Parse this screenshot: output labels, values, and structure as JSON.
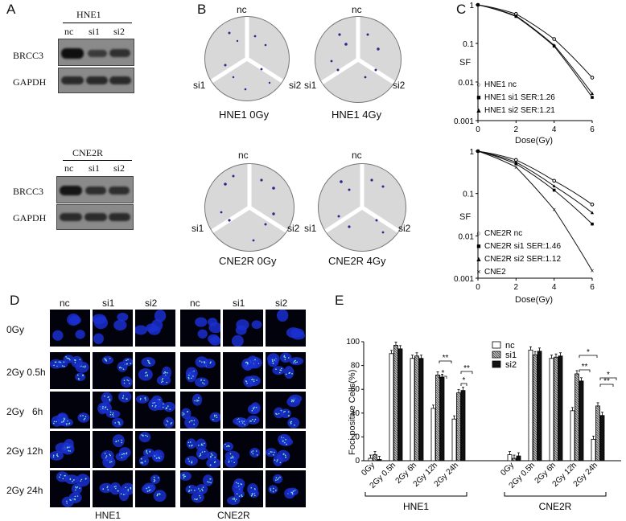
{
  "panelA": {
    "letter": "A",
    "blots": [
      {
        "cell_line": "HNE1",
        "lanes": [
          "nc",
          "si1",
          "si2"
        ],
        "rows": [
          "BRCC3",
          "GAPDH"
        ]
      },
      {
        "cell_line": "CNE2R",
        "lanes": [
          "nc",
          "si1",
          "si2"
        ],
        "rows": [
          "BRCC3",
          "GAPDH"
        ]
      }
    ]
  },
  "panelB": {
    "letter": "B",
    "plates": [
      {
        "caption": "HNE1 0Gy",
        "top": "nc",
        "left": "si1",
        "right": "si2"
      },
      {
        "caption": "HNE1 4Gy",
        "top": "nc",
        "left": "si1",
        "right": "si2"
      },
      {
        "caption": "CNE2R 0Gy",
        "top": "nc",
        "left": "si1",
        "right": "si2"
      },
      {
        "caption": "CNE2R 4Gy",
        "top": "nc",
        "left": "si1",
        "right": "si2"
      }
    ]
  },
  "panelC": {
    "letter": "C",
    "ylabel": "SF",
    "xlabel": "Dose(Gy)",
    "x_ticks": [
      "0",
      "2",
      "4",
      "6"
    ],
    "y_ticks": [
      "1",
      "0.1",
      "0.01",
      "0.001"
    ]
  },
  "panelD": {
    "letter": "D",
    "columns": [
      "nc",
      "si1",
      "si2",
      "nc",
      "si1",
      "si2"
    ],
    "rows": [
      "0Gy",
      "2Gy 0.5h",
      "2Gy   6h",
      "2Gy 12h",
      "2Gy 24h"
    ],
    "groups": [
      "HNE1",
      "CNE2R"
    ]
  },
  "panelE": {
    "letter": "E",
    "ylabel": "Foci-positive Cells(%)",
    "y_ticks": [
      "0",
      "20",
      "40",
      "60",
      "80",
      "100"
    ],
    "significance": [
      "**",
      "*",
      "**",
      "*",
      "*",
      "**",
      "**",
      "*"
    ]
  },
  "chart_data": [
    {
      "type": "line",
      "panel": "C-top",
      "xlabel": "Dose(Gy)",
      "ylabel": "SF",
      "yscale": "log",
      "xlim": [
        0,
        6
      ],
      "ylim": [
        0.001,
        1
      ],
      "x": [
        0,
        2,
        4,
        6
      ],
      "series": [
        {
          "name": "HNE1 nc",
          "marker": "circle",
          "values": [
            1,
            0.58,
            0.13,
            0.013
          ]
        },
        {
          "name": "HNE1 si1  SER:1.26",
          "marker": "square",
          "values": [
            1,
            0.5,
            0.085,
            0.004
          ]
        },
        {
          "name": "HNE1 si2  SER:1.21",
          "marker": "triangle",
          "values": [
            1,
            0.52,
            0.09,
            0.005
          ]
        }
      ]
    },
    {
      "type": "line",
      "panel": "C-bottom",
      "xlabel": "Dose(Gy)",
      "ylabel": "SF",
      "yscale": "log",
      "xlim": [
        0,
        6
      ],
      "ylim": [
        0.001,
        1
      ],
      "x": [
        0,
        2,
        4,
        6
      ],
      "series": [
        {
          "name": "CNE2R nc",
          "marker": "circle",
          "values": [
            1,
            0.62,
            0.2,
            0.055
          ]
        },
        {
          "name": "CNE2R si1  SER:1.46",
          "marker": "square",
          "values": [
            1,
            0.5,
            0.12,
            0.019
          ]
        },
        {
          "name": "CNE2R si2  SER:1.12",
          "marker": "triangle",
          "values": [
            1,
            0.55,
            0.15,
            0.035
          ]
        },
        {
          "name": "CNE2",
          "marker": "star",
          "values": [
            1,
            0.42,
            0.042,
            0.0015
          ]
        }
      ]
    },
    {
      "type": "bar",
      "panel": "E",
      "ylabel": "Foci-positive Cells(%)",
      "ylim": [
        0,
        100
      ],
      "groups": [
        "HNE1",
        "CNE2R"
      ],
      "categories": [
        "0Gy",
        "2Gy 0.5h",
        "2Gy 6h",
        "2Gy 12h",
        "2Gy 24h"
      ],
      "series": [
        {
          "name": "nc",
          "values": {
            "HNE1": [
              2,
              90,
              86,
              44,
              35
            ],
            "CNE2R": [
              5,
              93,
              86,
              42,
              18
            ]
          }
        },
        {
          "name": "si1",
          "values": {
            "HNE1": [
              5,
              97,
              88,
              72,
              57
            ],
            "CNE2R": [
              2,
              89,
              87,
              73,
              46
            ]
          }
        },
        {
          "name": "si2",
          "values": {
            "HNE1": [
              1,
              94,
              86,
              70,
              59
            ],
            "CNE2R": [
              4,
              92,
              88,
              67,
              38
            ]
          }
        }
      ]
    }
  ]
}
